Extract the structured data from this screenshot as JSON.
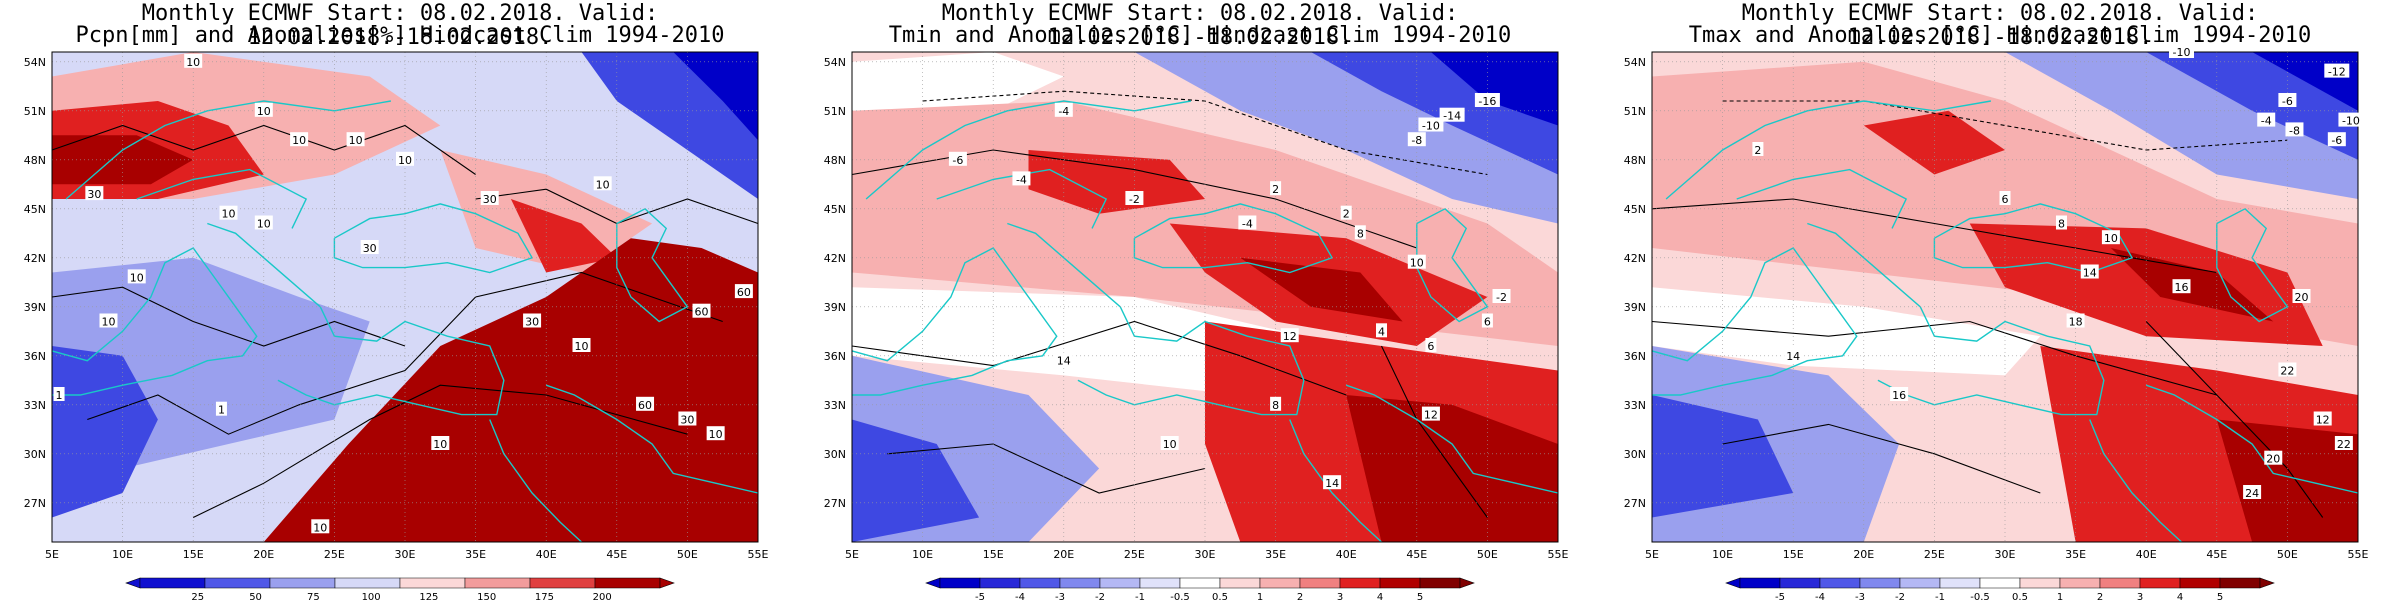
{
  "panels": [
    {
      "id": "pcpn",
      "title1": "Monthly ECMWF Start: 08.02.2018. Valid: 12.02.2018.-18.02.2018.",
      "title2": "Pcpn[mm] and Anomalies[%] Hindcast Clim 1994-2010",
      "colorbar": [
        "25",
        "50",
        "75",
        "100",
        "125",
        "150",
        "175",
        "200"
      ],
      "contour_labels": [
        "10",
        "10",
        "10",
        "10",
        "10",
        "30",
        "10",
        "10",
        "30",
        "10",
        "30",
        "10",
        "10",
        "60",
        "30",
        "60",
        "10",
        "10",
        "30",
        "60",
        "10",
        "1",
        "1",
        "10"
      ]
    },
    {
      "id": "tmin",
      "title1": "Monthly ECMWF Start: 08.02.2018. Valid: 12.02.2018.-18.02.2018.",
      "title2": "Tmin and Anomalies [°C] Hindcast Clim 1994-2010",
      "colorbar": [
        "-5",
        "-4",
        "-3",
        "-2",
        "-1",
        "-0.5",
        "0.5",
        "1",
        "2",
        "3",
        "4",
        "5"
      ],
      "contour_labels": [
        "-4",
        "-14",
        "-16",
        "-10",
        "-8",
        "-6",
        "-4",
        "-2",
        "2",
        "-4",
        "8",
        "2",
        "10",
        "12",
        "4",
        "6",
        "14",
        "8",
        "12",
        "14",
        "10",
        "6",
        "-2"
      ]
    },
    {
      "id": "tmax",
      "title1": "Monthly ECMWF Start: 08.02.2018. Valid: 12.02.2018.-18.02.2018.",
      "title2": "Tmax and Anomalies [°C] Hindcast Clim 1994-2010",
      "colorbar": [
        "-5",
        "-4",
        "-3",
        "-2",
        "-1",
        "-0.5",
        "0.5",
        "1",
        "2",
        "3",
        "4",
        "5"
      ],
      "contour_labels": [
        "-10",
        "-12",
        "-6",
        "-4",
        "-8",
        "-6",
        "-10",
        "2",
        "6",
        "10",
        "8",
        "14",
        "16",
        "18",
        "20",
        "22",
        "24",
        "16",
        "14",
        "12",
        "20",
        "22"
      ]
    }
  ],
  "lat_labels": [
    "54N",
    "51N",
    "48N",
    "45N",
    "42N",
    "39N",
    "36N",
    "33N",
    "30N",
    "27N"
  ],
  "lon_labels": [
    "5E",
    "10E",
    "15E",
    "20E",
    "25E",
    "30E",
    "35E",
    "40E",
    "45E",
    "50E",
    "55E"
  ],
  "colors": {
    "coast": "#19c8c8",
    "dark_red": "#a80000",
    "red": "#e02020",
    "light_red": "#f7b0b0",
    "pale_red": "#fbd8d8",
    "pale_blue": "#d6d9f7",
    "light_blue": "#9aa0ee",
    "blue": "#3e48e2",
    "dark_blue": "#0000c8"
  }
}
